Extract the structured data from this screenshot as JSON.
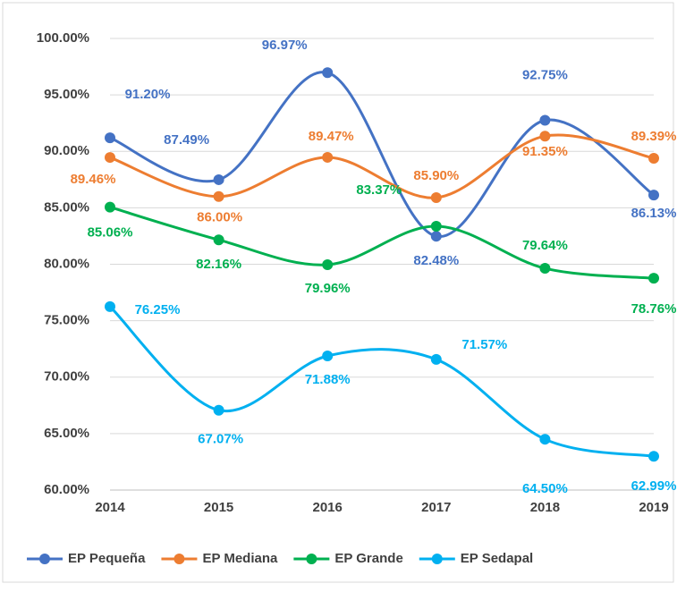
{
  "chart_data": {
    "type": "line",
    "categories": [
      "2014",
      "2015",
      "2016",
      "2017",
      "2018",
      "2019"
    ],
    "ylim": [
      60,
      100
    ],
    "yticks": [
      {
        "value": 60,
        "label": "60.00%"
      },
      {
        "value": 65,
        "label": "65.00%"
      },
      {
        "value": 70,
        "label": "70.00%"
      },
      {
        "value": 75,
        "label": "75.00%"
      },
      {
        "value": 80,
        "label": "80.00%"
      },
      {
        "value": 85,
        "label": "85.00%"
      },
      {
        "value": 90,
        "label": "90.00%"
      },
      {
        "value": 95,
        "label": "95.00%"
      },
      {
        "value": 100,
        "label": "100.00%"
      }
    ],
    "grid": true,
    "smooth": true,
    "legend": "bottom",
    "series": [
      {
        "name": "EP Pequeña",
        "color": "#4472c4",
        "values": [
          91.2,
          87.49,
          96.97,
          82.48,
          92.75,
          86.13
        ],
        "value_labels": [
          "91.20%",
          "87.49%",
          "96.97%",
          "82.48%",
          "92.75%",
          "86.13%"
        ]
      },
      {
        "name": "EP Mediana",
        "color": "#ed7d31",
        "values": [
          89.46,
          86.0,
          89.47,
          85.9,
          91.35,
          89.39
        ],
        "value_labels": [
          "89.46%",
          "86.00%",
          "89.47%",
          "85.90%",
          "91.35%",
          "89.39%"
        ]
      },
      {
        "name": "EP Grande",
        "color": "#00b050",
        "values": [
          85.06,
          82.16,
          79.96,
          83.37,
          79.64,
          78.76
        ],
        "value_labels": [
          "85.06%",
          "82.16%",
          "79.96%",
          "83.37%",
          "79.64%",
          "78.76%"
        ]
      },
      {
        "name": "EP Sedapal",
        "color": "#00b0f0",
        "values": [
          76.25,
          67.07,
          71.88,
          71.57,
          64.5,
          62.99
        ],
        "value_labels": [
          "76.25%",
          "67.07%",
          "71.88%",
          "71.57%",
          "64.50%",
          "62.99%"
        ]
      }
    ]
  }
}
